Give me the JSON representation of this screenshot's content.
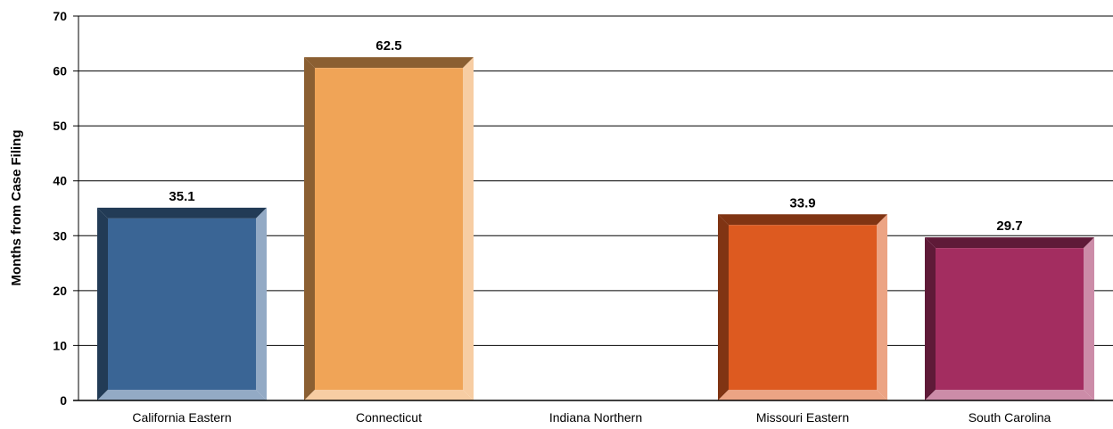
{
  "chart_data": {
    "type": "bar",
    "categories": [
      "California Eastern",
      "Connecticut",
      "Indiana Northern",
      "Missouri Eastern",
      "South Carolina"
    ],
    "values": [
      35.1,
      62.5,
      null,
      33.9,
      29.7
    ],
    "value_labels": [
      "35.1",
      "62.5",
      "",
      "33.9",
      "29.7"
    ],
    "ylabel": "Months from Case Filing",
    "xlabel": "",
    "ylim": [
      0,
      70
    ],
    "yticks": [
      0,
      10,
      20,
      30,
      40,
      50,
      60,
      70
    ],
    "grid": true,
    "style": "3d-bevel",
    "colors": {
      "California Eastern": "#3a6595",
      "Connecticut": "#f0a457",
      "Indiana Northern": "#888888",
      "Missouri Eastern": "#dd5a20",
      "South Carolina": "#a32d60"
    }
  }
}
